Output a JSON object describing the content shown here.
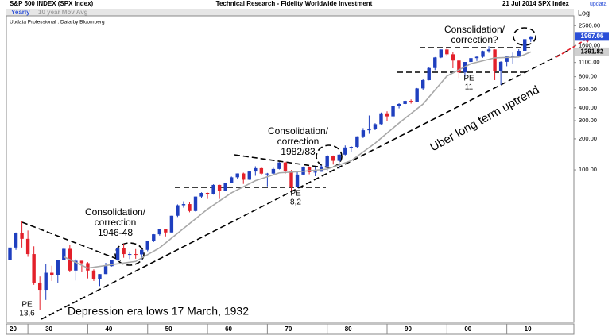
{
  "header": {
    "title": "S&P 500 INDEX (SPX Index)",
    "center": "Technical Research - Fidelity Worldwide Investment",
    "right": "21 Jul 2014  SPX Index",
    "logo": "updata",
    "source": "Updata Professional : Data by Bloomberg"
  },
  "chart_data": {
    "type": "candlestick",
    "name": "Yearly",
    "up_color": "#1f3fbf",
    "down_color": "#e3202a",
    "last_tag_color": "#2b4fd8",
    "x": [
      1927,
      1928,
      1929,
      1930,
      1931,
      1932,
      1933,
      1934,
      1935,
      1936,
      1937,
      1938,
      1939,
      1940,
      1941,
      1942,
      1943,
      1944,
      1945,
      1946,
      1947,
      1948,
      1949,
      1950,
      1951,
      1952,
      1953,
      1954,
      1955,
      1956,
      1957,
      1958,
      1959,
      1960,
      1961,
      1962,
      1963,
      1964,
      1965,
      1966,
      1967,
      1968,
      1969,
      1970,
      1971,
      1972,
      1973,
      1974,
      1975,
      1976,
      1977,
      1978,
      1979,
      1980,
      1981,
      1982,
      1983,
      1984,
      1985,
      1986,
      1987,
      1988,
      1989,
      1990,
      1991,
      1992,
      1993,
      1994,
      1995,
      1996,
      1997,
      1998,
      1999,
      2000,
      2001,
      2002,
      2003,
      2004,
      2005,
      2006,
      2007,
      2008,
      2009,
      2010,
      2011,
      2012,
      2013,
      2014
    ],
    "open": [
      13.5,
      17.7,
      24.4,
      21.5,
      15.3,
      8.1,
      6.9,
      10.1,
      9.5,
      13.4,
      17.2,
      10.6,
      13.2,
      12.5,
      10.6,
      8.7,
      9.8,
      11.7,
      13.3,
      17.4,
      15.3,
      15.3,
      15.2,
      16.8,
      20.4,
      23.8,
      26.6,
      24.8,
      36.0,
      45.5,
      46.7,
      40.0,
      55.2,
      59.9,
      58.1,
      71.6,
      63.1,
      75.0,
      84.8,
      92.4,
      80.3,
      96.5,
      103.9,
      92.1,
      92.2,
      102.1,
      118.1,
      97.6,
      68.6,
      90.2,
      107.5,
      95.1,
      96.1,
      107.9,
      135.8,
      122.6,
      140.6,
      164.9,
      167.2,
      211.3,
      242.2,
      247.1,
      277.7,
      353.4,
      330.2,
      417.1,
      435.7,
      466.5,
      459.3,
      615.9,
      740.7,
      970.4,
      1229,
      1469,
      1320,
      1148,
      880,
      1112,
      1212,
      1248,
      1418,
      1468,
      903,
      1115,
      1258,
      1258,
      1426,
      1848
    ],
    "high": [
      18.7,
      24.8,
      31.9,
      25.9,
      18.2,
      9.3,
      12.2,
      11.8,
      13.5,
      17.7,
      18.7,
      13.8,
      13.2,
      12.8,
      10.9,
      9.8,
      12.6,
      13.3,
      17.7,
      19.3,
      16.2,
      17.1,
      16.8,
      20.4,
      23.9,
      26.6,
      26.7,
      36.0,
      46.4,
      49.7,
      49.1,
      55.2,
      60.7,
      60.4,
      72.6,
      72.0,
      75.0,
      86.3,
      92.6,
      94.1,
      97.6,
      108.4,
      106.2,
      93.5,
      104.8,
      119.1,
      120.2,
      99.8,
      95.6,
      107.8,
      107.9,
      106.9,
      111.3,
      140.5,
      138.1,
      143.0,
      172.7,
      170.4,
      212.0,
      254.0,
      336.8,
      283.7,
      359.8,
      369.8,
      417.1,
      442.7,
      471.3,
      482.0,
      621.7,
      757.0,
      983.8,
      1241,
      1469,
      1553,
      1383,
      1173,
      1112,
      1217,
      1273,
      1431,
      1576,
      1471,
      1130,
      1260,
      1371,
      1475,
      1849,
      1985
    ],
    "low": [
      13.2,
      16.8,
      17.7,
      14.4,
      7.7,
      4.4,
      5.5,
      8.4,
      8.1,
      13.4,
      10.2,
      8.5,
      10.2,
      8.9,
      8.4,
      7.5,
      9.8,
      11.6,
      13.2,
      14.1,
      13.7,
      13.8,
      13.6,
      16.3,
      20.0,
      23.1,
      22.7,
      24.8,
      35.0,
      43.1,
      38.9,
      39.5,
      53.6,
      52.3,
      57.6,
      52.3,
      62.7,
      75.0,
      81.6,
      73.2,
      80.0,
      87.7,
      89.2,
      69.3,
      90.2,
      101.0,
      92.2,
      62.3,
      68.0,
      90.2,
      90.7,
      86.9,
      96.1,
      98.2,
      112.8,
      102.4,
      138.3,
      147.8,
      163.7,
      203.5,
      223.9,
      242.6,
      275.3,
      295.5,
      311.5,
      394.5,
      429.1,
      438.9,
      459.1,
      598.5,
      737.0,
      927,
      1212,
      1264,
      966,
      777,
      789,
      1063,
      1137,
      1220,
      1363,
      741,
      667,
      1011,
      1075,
      1258,
      1426,
      1738
    ],
    "close": [
      17.7,
      24.4,
      21.5,
      15.3,
      8.1,
      6.9,
      10.1,
      9.5,
      13.4,
      17.2,
      10.6,
      13.2,
      12.5,
      10.6,
      8.7,
      9.8,
      11.7,
      13.3,
      17.4,
      15.3,
      15.3,
      15.2,
      16.8,
      20.4,
      23.8,
      26.6,
      24.8,
      36.0,
      45.5,
      46.7,
      40.0,
      55.2,
      59.9,
      58.1,
      71.6,
      63.1,
      75.0,
      84.8,
      92.4,
      80.3,
      96.5,
      103.9,
      92.1,
      92.2,
      102.1,
      118.1,
      97.6,
      68.6,
      90.2,
      107.5,
      95.1,
      96.1,
      107.9,
      135.8,
      122.6,
      140.6,
      164.9,
      167.2,
      211.3,
      242.2,
      247.1,
      277.7,
      353.4,
      330.2,
      417.1,
      435.7,
      466.5,
      459.3,
      615.9,
      740.7,
      970.4,
      1229,
      1469,
      1320,
      1148,
      880,
      1112,
      1212,
      1248,
      1418,
      1468,
      903,
      1115,
      1258,
      1258,
      1426,
      1848,
      1967.06
    ],
    "ma": {
      "name": "10 year Mov Avg",
      "color": "#a8a8a8",
      "x": [
        1936,
        1940,
        1944,
        1948,
        1952,
        1956,
        1960,
        1964,
        1968,
        1972,
        1976,
        1980,
        1984,
        1988,
        1992,
        1996,
        2000,
        2004,
        2008,
        2012,
        2014
      ],
      "values": [
        14.4,
        11.2,
        12.1,
        13.0,
        17.6,
        27.1,
        41.7,
        60.0,
        78.6,
        93.7,
        96.9,
        101.9,
        122.8,
        181.7,
        284.7,
        434.4,
        812.4,
        1069.7,
        1217.8,
        1241.8,
        1391.82
      ]
    },
    "log_y": true,
    "y_axis_label": "Log",
    "ylim": [
      3.4,
      3000
    ],
    "yticks": [
      {
        "value": 100,
        "label": "100.00"
      },
      {
        "value": 200,
        "label": "200.00"
      },
      {
        "value": 300,
        "label": "300.00"
      },
      {
        "value": 400,
        "label": "400.00"
      },
      {
        "value": 600,
        "label": "600.00"
      },
      {
        "value": 800,
        "label": "800.00"
      },
      {
        "value": 1100,
        "label": "1100.00"
      },
      {
        "value": 1600,
        "label": "1600.00"
      },
      {
        "value": 2500,
        "label": "2500.00"
      }
    ],
    "xlim": [
      1926.4,
      2021.2
    ],
    "xticks": [
      {
        "value": 1920,
        "label": "20"
      },
      {
        "value": 1930,
        "label": "30"
      },
      {
        "value": 1940,
        "label": "40"
      },
      {
        "value": 1950,
        "label": "50"
      },
      {
        "value": 1960,
        "label": "60"
      },
      {
        "value": 1970,
        "label": "70"
      },
      {
        "value": 1980,
        "label": "80"
      },
      {
        "value": 1990,
        "label": "90"
      },
      {
        "value": 2000,
        "label": "00"
      },
      {
        "value": 2010,
        "label": "10"
      }
    ],
    "annotations": [
      [
        "Consolidation/",
        "correction",
        "1946-48"
      ],
      [
        "Consolidation/",
        "correction",
        "1982/83"
      ],
      [
        "Consolidation/",
        "correction?"
      ],
      [
        "PE",
        "13,6"
      ],
      [
        "PE",
        "8,2"
      ],
      [
        "PE",
        "11"
      ],
      [
        "Uber long term uptrend"
      ],
      [
        "Depression era lows 17 March, 1932"
      ]
    ]
  }
}
